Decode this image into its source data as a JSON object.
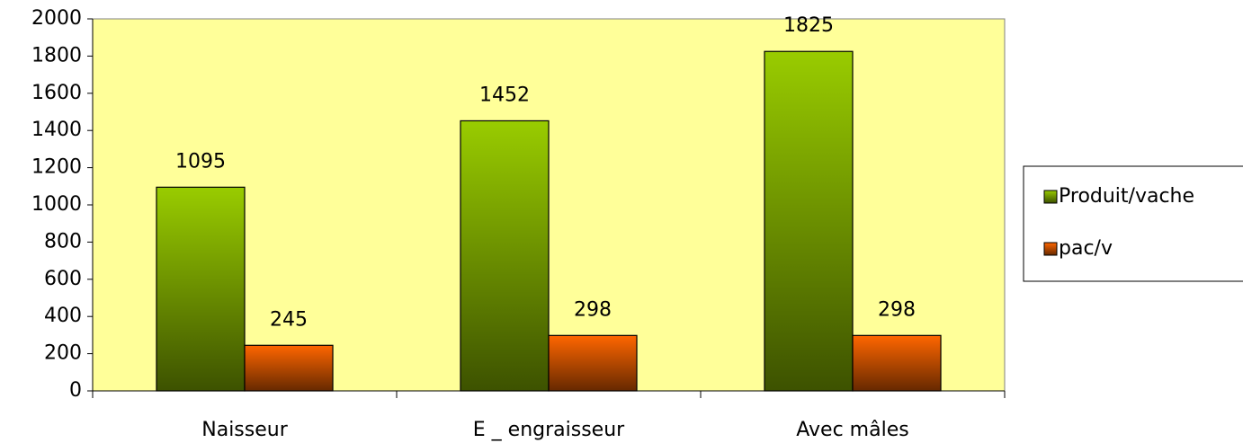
{
  "chart_data": {
    "type": "bar",
    "categories": [
      "Naisseur",
      "E _ engraisseur",
      "Avec mâles"
    ],
    "series": [
      {
        "name": "Produit/vache",
        "color": "#99cc00",
        "values": [
          1095,
          1452,
          1825
        ]
      },
      {
        "name": "pac/v",
        "color": "#ff6600",
        "values": [
          245,
          298,
          298
        ]
      }
    ],
    "ylim": [
      0,
      2000
    ],
    "yticks": [
      0,
      200,
      400,
      600,
      800,
      1000,
      1200,
      1400,
      1600,
      1800,
      2000
    ],
    "plot_background": "#ffff99",
    "legend": "right"
  }
}
